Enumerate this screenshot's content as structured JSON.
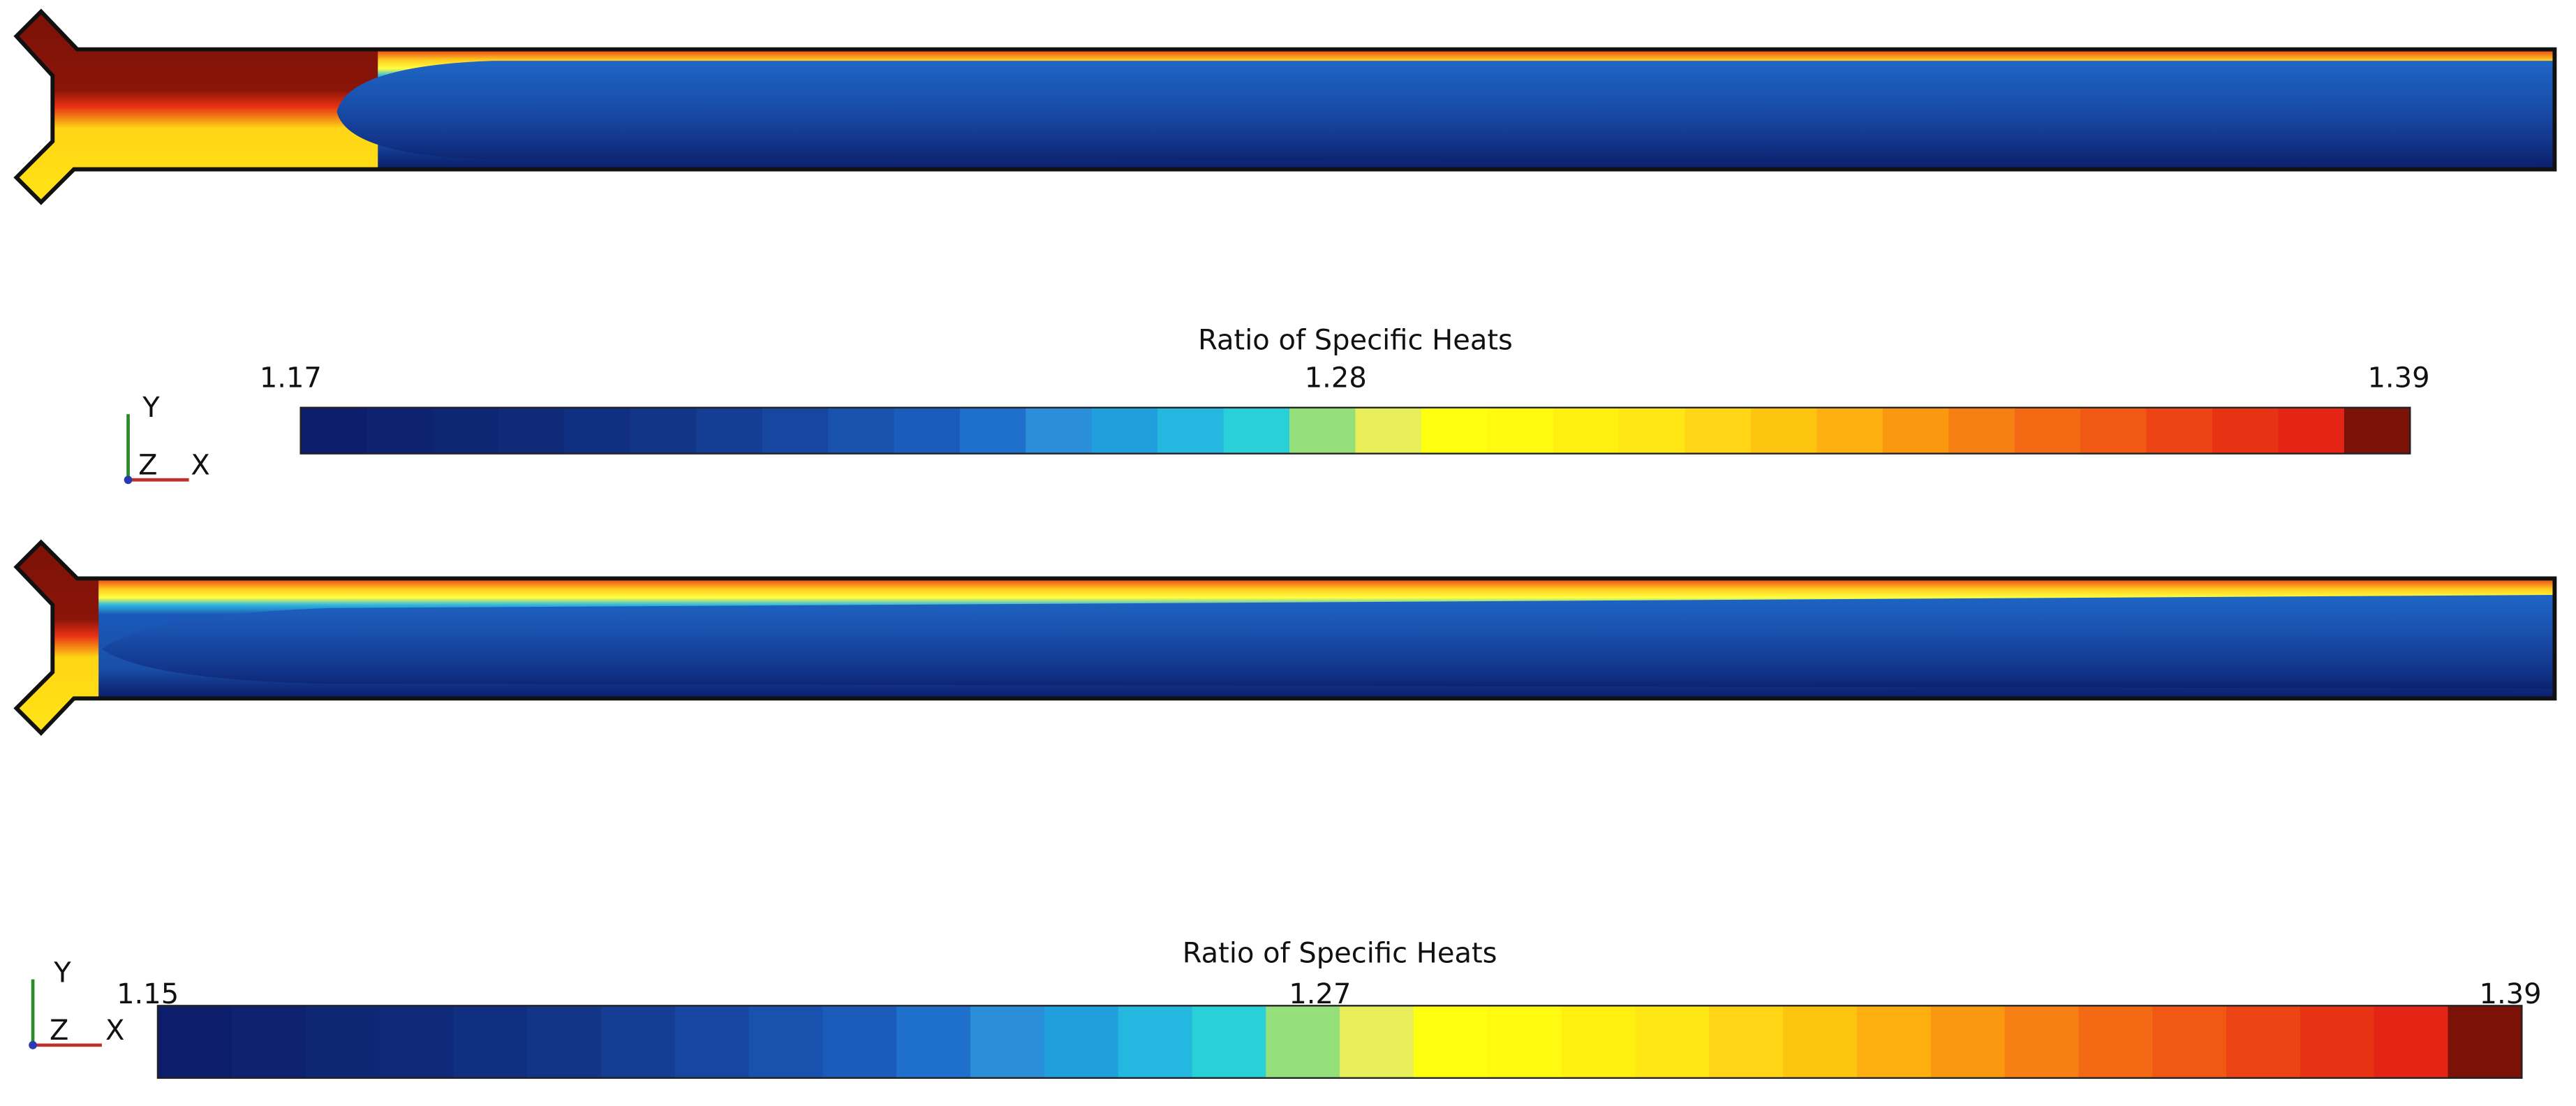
{
  "panels": [
    {
      "colorbar": {
        "title": "Ratio of Specific Heats",
        "lim": [
          1.17,
          1.39
        ],
        "ticks": [
          1.17,
          1.28,
          1.39
        ]
      },
      "axes_labels": [
        "Y",
        "Z",
        "X"
      ]
    },
    {
      "colorbar": {
        "title": "Ratio of Specific Heats",
        "lim": [
          1.15,
          1.39
        ],
        "ticks": [
          1.15,
          1.27,
          1.39
        ]
      },
      "axes_labels": [
        "Y",
        "Z",
        "X"
      ]
    }
  ],
  "colormap": [
    "#0b1d6b",
    "#0d2270",
    "#0e2775",
    "#102a7a",
    "#112f80",
    "#123587",
    "#143d93",
    "#1646a0",
    "#1851ae",
    "#1b5cbb",
    "#1f6fcc",
    "#2a8fd8",
    "#1fa0dc",
    "#24b8e0",
    "#2ad0d8",
    "#95e07a",
    "#e8ee5a",
    "#ffff10",
    "#fffa10",
    "#fff010",
    "#ffe615",
    "#ffd515",
    "#fec510",
    "#fdb010",
    "#fa9810",
    "#f78014",
    "#f46a14",
    "#f05814",
    "#ec4414",
    "#e83214",
    "#e42414",
    "#7a1208"
  ]
}
